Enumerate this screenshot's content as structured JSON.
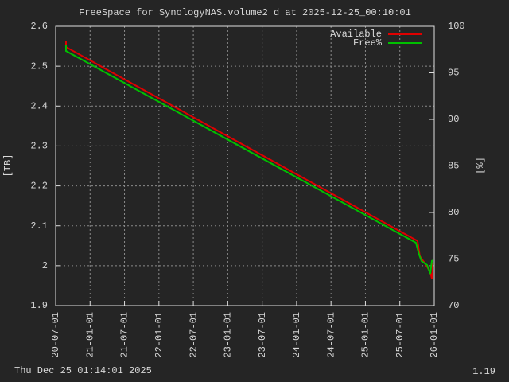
{
  "chart_data": {
    "type": "line",
    "title": "FreeSpace for SynologyNAS.volume2 d at 2025-12-25_00:10:01",
    "ylabel": "[TB]",
    "y2label": "[%]",
    "footer_left": "Thu Dec 25 01:14:01 2025",
    "footer_right": "1.19",
    "xlim": [
      2020.5,
      2026.0
    ],
    "xticks": [
      {
        "value": 2020.5,
        "label": "20-07-01"
      },
      {
        "value": 2021.0,
        "label": "21-01-01"
      },
      {
        "value": 2021.5,
        "label": "21-07-01"
      },
      {
        "value": 2022.0,
        "label": "22-01-01"
      },
      {
        "value": 2022.5,
        "label": "22-07-01"
      },
      {
        "value": 2023.0,
        "label": "23-01-01"
      },
      {
        "value": 2023.5,
        "label": "23-07-01"
      },
      {
        "value": 2024.0,
        "label": "24-01-01"
      },
      {
        "value": 2024.5,
        "label": "24-07-01"
      },
      {
        "value": 2025.0,
        "label": "25-01-01"
      },
      {
        "value": 2025.5,
        "label": "25-07-01"
      },
      {
        "value": 2026.0,
        "label": "26-01-01"
      }
    ],
    "ylim": [
      1.9,
      2.6
    ],
    "yticks": [
      1.9,
      2,
      2.1,
      2.2,
      2.3,
      2.4,
      2.5,
      2.6
    ],
    "y2lim": [
      70,
      100
    ],
    "y2ticks": [
      70,
      75,
      80,
      85,
      90,
      95,
      100
    ],
    "grid": true,
    "legend": "top-right",
    "series": [
      {
        "name": "Available",
        "color": "#e00000",
        "x": [
          2020.65,
          2020.65,
          2025.757,
          2025.79,
          2025.873,
          2025.942,
          2025.965,
          2025.977,
          2025.977
        ],
        "values": [
          2.562,
          2.548,
          2.062,
          2.024,
          2.004,
          1.984,
          1.968,
          1.988,
          2.008
        ]
      },
      {
        "name": "Free%",
        "color": "#00c000",
        "axis": "y2",
        "x": [
          2020.65,
          2020.65,
          2025.734,
          2025.78,
          2025.815,
          2025.896,
          2025.942,
          2025.965,
          2025.977
        ],
        "values": [
          97.95,
          97.35,
          76.75,
          75.47,
          74.79,
          74.36,
          73.42,
          74.79,
          74.87
        ]
      }
    ]
  }
}
